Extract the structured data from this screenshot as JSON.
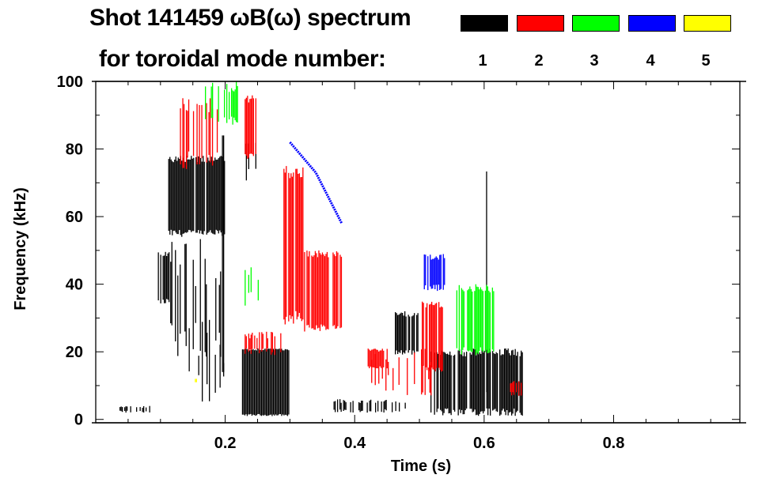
{
  "chart_data": {
    "type": "heatmap",
    "title_line1": "Shot 141459 ωB(ω) spectrum",
    "title_line2": "for toroidal mode number:",
    "xlabel": "Time (s)",
    "ylabel": "Frequency (kHz)",
    "xlim": [
      0,
      0.995
    ],
    "ylim": [
      -1,
      100
    ],
    "xticks": [
      0.2,
      0.4,
      0.6,
      0.8
    ],
    "xtick_labels": [
      "0.2",
      "0.4",
      "0.6",
      "0.8"
    ],
    "yticks": [
      0,
      20,
      40,
      60,
      80,
      100
    ],
    "ytick_labels": [
      "0",
      "20",
      "40",
      "60",
      "80",
      "100"
    ],
    "legend": [
      {
        "mode": "1",
        "color": "#000000"
      },
      {
        "mode": "2",
        "color": "#ff0000"
      },
      {
        "mode": "3",
        "color": "#00ff00"
      },
      {
        "mode": "4",
        "color": "#0000ff"
      },
      {
        "mode": "5",
        "color": "#ffff00"
      }
    ],
    "regions": [
      {
        "mode": 1,
        "t": [
          0.096,
          0.118
        ],
        "f": [
          34,
          50
        ],
        "density": 0.8
      },
      {
        "mode": 1,
        "t": [
          0.112,
          0.2
        ],
        "f": [
          54,
          78
        ],
        "density": 0.85
      },
      {
        "mode": 1,
        "t": [
          0.115,
          0.2
        ],
        "f": [
          14,
          54
        ],
        "density": 0.35
      },
      {
        "mode": 1,
        "t": [
          0.14,
          0.2
        ],
        "f": [
          2,
          30
        ],
        "density": 0.2
      },
      {
        "mode": 1,
        "t": [
          0.195,
          0.198
        ],
        "f": [
          14,
          84
        ],
        "density": 1
      },
      {
        "mode": 1,
        "t": [
          0.224,
          0.298
        ],
        "f": [
          1,
          21
        ],
        "density": 0.95
      },
      {
        "mode": 1,
        "t": [
          0.23,
          0.248
        ],
        "f": [
          70,
          84
        ],
        "density": 0.4
      },
      {
        "mode": 1,
        "t": [
          0.36,
          0.48
        ],
        "f": [
          2,
          6
        ],
        "density": 0.5
      },
      {
        "mode": 1,
        "t": [
          0.462,
          0.5
        ],
        "f": [
          19,
          32
        ],
        "density": 0.8
      },
      {
        "mode": 1,
        "t": [
          0.517,
          0.66
        ],
        "f": [
          1,
          21
        ],
        "density": 0.8
      },
      {
        "mode": 1,
        "t": [
          0.033,
          0.084
        ],
        "f": [
          2,
          4
        ],
        "density": 0.5
      },
      {
        "mode": 1,
        "t": [
          0.603,
          0.607
        ],
        "f": [
          5,
          78
        ],
        "density": 0.4
      },
      {
        "mode": 2,
        "t": [
          0.13,
          0.188
        ],
        "f": [
          74,
          96
        ],
        "density": 0.6
      },
      {
        "mode": 2,
        "t": [
          0.23,
          0.248
        ],
        "f": [
          77,
          96
        ],
        "density": 0.8
      },
      {
        "mode": 2,
        "t": [
          0.29,
          0.32
        ],
        "f": [
          28,
          75
        ],
        "density": 0.85
      },
      {
        "mode": 2,
        "t": [
          0.32,
          0.38
        ],
        "f": [
          26,
          50
        ],
        "density": 0.85
      },
      {
        "mode": 2,
        "t": [
          0.23,
          0.29
        ],
        "f": [
          19,
          26
        ],
        "density": 0.5
      },
      {
        "mode": 2,
        "t": [
          0.42,
          0.52
        ],
        "f": [
          7,
          21
        ],
        "density": 0.25
      },
      {
        "mode": 2,
        "t": [
          0.42,
          0.45
        ],
        "f": [
          15,
          21
        ],
        "density": 0.8
      },
      {
        "mode": 2,
        "t": [
          0.5,
          0.535
        ],
        "f": [
          14,
          35
        ],
        "density": 0.85
      },
      {
        "mode": 2,
        "t": [
          0.64,
          0.66
        ],
        "f": [
          7,
          12
        ],
        "density": 0.5
      },
      {
        "mode": 3,
        "t": [
          0.165,
          0.22
        ],
        "f": [
          87,
          100
        ],
        "density": 0.6
      },
      {
        "mode": 3,
        "t": [
          0.557,
          0.615
        ],
        "f": [
          19,
          40
        ],
        "density": 0.8
      },
      {
        "mode": 3,
        "t": [
          0.23,
          0.255
        ],
        "f": [
          33,
          45
        ],
        "density": 0.3
      },
      {
        "mode": 4,
        "t": [
          0.505,
          0.54
        ],
        "f": [
          38,
          49
        ],
        "density": 0.7
      },
      {
        "mode": 5,
        "t": [
          0.153,
          0.156
        ],
        "f": [
          11,
          12
        ],
        "density": 1
      }
    ],
    "lines": [
      {
        "mode": 4,
        "points": [
          [
            0.3,
            82
          ],
          [
            0.34,
            73
          ],
          [
            0.38,
            58
          ]
        ]
      }
    ]
  }
}
